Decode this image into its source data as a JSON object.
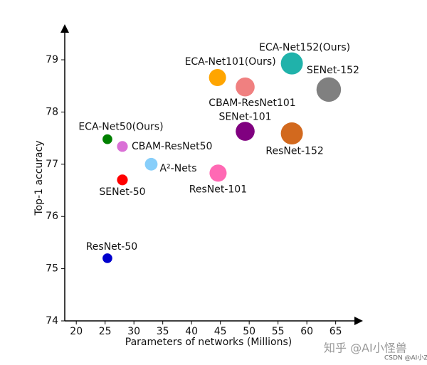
{
  "chart_data": {
    "type": "bubble",
    "xlabel": "Parameters of networks (Millions)",
    "ylabel": "Top-1 accuracy",
    "xlim": [
      18,
      68.5
    ],
    "ylim": [
      74,
      79.6
    ],
    "xticks": [
      20,
      25,
      30,
      35,
      40,
      45,
      50,
      55,
      60,
      65
    ],
    "yticks": [
      74,
      75,
      76,
      77,
      78,
      79
    ],
    "points": [
      {
        "name": "ECA-Net152(Ours)",
        "x": 57.4,
        "y": 78.93,
        "color": "#20b2aa"
      },
      {
        "name": "SENet-152",
        "x": 63.8,
        "y": 78.43,
        "color": "#808080"
      },
      {
        "name": "ECA-Net101(Ours)",
        "x": 44.5,
        "y": 78.66,
        "color": "#ffa500"
      },
      {
        "name": "CBAM-ResNet101",
        "x": 49.3,
        "y": 78.48,
        "color": "#f08080"
      },
      {
        "name": "SENet-101",
        "x": 49.3,
        "y": 77.63,
        "color": "#800080"
      },
      {
        "name": "ResNet-152",
        "x": 57.4,
        "y": 77.59,
        "color": "#d2691e"
      },
      {
        "name": "ECA-Net50(Ours)",
        "x": 25.4,
        "y": 77.48,
        "color": "#008000"
      },
      {
        "name": "CBAM-ResNet50",
        "x": 28.0,
        "y": 77.34,
        "color": "#da70d6"
      },
      {
        "name": "A²-Nets",
        "x": 33.0,
        "y": 77.0,
        "color": "#87cefa"
      },
      {
        "name": "SENet-50",
        "x": 28.0,
        "y": 76.7,
        "color": "#ff0000"
      },
      {
        "name": "ResNet-101",
        "x": 44.6,
        "y": 76.83,
        "color": "#ff69b4"
      },
      {
        "name": "ResNet-50",
        "x": 25.4,
        "y": 75.2,
        "color": "#0000cd"
      }
    ],
    "watermark": "知乎 @AI小怪兽",
    "watermark2": "CSDN @AI小ZV"
  }
}
